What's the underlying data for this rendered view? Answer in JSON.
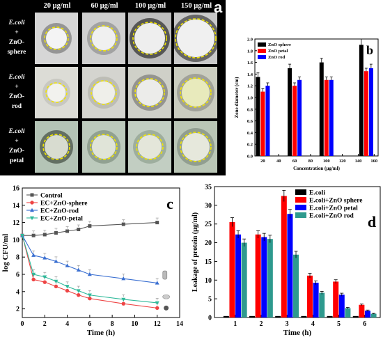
{
  "panel_a": {
    "letter": "a",
    "columns": [
      "20 µg/ml",
      "60 µg/ml",
      "100 µg/ml",
      "150 µg/ml"
    ],
    "rows": [
      {
        "l1": "E.coli",
        "l2": "+",
        "l3": "ZnO-",
        "l4": "sphere"
      },
      {
        "l1": "E.coli",
        "l2": "+",
        "l3": "ZnO-",
        "l4": "rod"
      },
      {
        "l1": "E.coli",
        "l2": "+",
        "l3": "ZnO-",
        "l4": "petal"
      }
    ],
    "ring_color": "#f2e600"
  },
  "chart_data": [
    {
      "panel": "b",
      "type": "bar",
      "title": "",
      "xlabel": "Concentration (µg/ml)",
      "ylabel": "Zone diameter (cm)",
      "x": [
        20,
        60,
        100,
        150
      ],
      "xlim": [
        10,
        165
      ],
      "xticks": [
        20,
        40,
        60,
        80,
        100,
        120,
        140,
        160
      ],
      "ylim": [
        0,
        2.0
      ],
      "yticks": [
        "0.0",
        "0.2",
        "0.4",
        "0.6",
        "0.8",
        "1.0",
        "1.2",
        "1.4",
        "1.6",
        "1.8",
        "2.0"
      ],
      "legend_position": "top-left",
      "series": [
        {
          "name": "ZnO sphere",
          "color": "#000000",
          "values": [
            1.35,
            1.5,
            1.6,
            1.9
          ],
          "errors": [
            0.07,
            0.07,
            0.07,
            0.1
          ]
        },
        {
          "name": "ZnO petal",
          "color": "#ff0000",
          "values": [
            1.1,
            1.2,
            1.3,
            1.45
          ],
          "errors": [
            0.05,
            0.05,
            0.05,
            0.05
          ]
        },
        {
          "name": "ZnO rod",
          "color": "#0000ff",
          "values": [
            1.2,
            1.3,
            1.3,
            1.5
          ],
          "errors": [
            0.05,
            0.05,
            0.05,
            0.07
          ]
        }
      ]
    },
    {
      "panel": "c",
      "type": "line",
      "title": "",
      "xlabel": "Time (h)",
      "ylabel": "log CFU/ml",
      "xlim": [
        0,
        14
      ],
      "xticks": [
        "0",
        "2",
        "4",
        "6",
        "8",
        "10",
        "12",
        "14"
      ],
      "ylim": [
        1,
        16
      ],
      "yticks": [
        "2",
        "4",
        "6",
        "8",
        "10",
        "12",
        "14",
        "16"
      ],
      "legend_position": "top-left",
      "series": [
        {
          "name": "Control",
          "color": "#555555",
          "marker": "square",
          "x": [
            0,
            1,
            2,
            3,
            4,
            5,
            6,
            9,
            12
          ],
          "y": [
            10.5,
            10.5,
            10.6,
            10.8,
            11.0,
            11.2,
            11.6,
            11.8,
            12.0
          ]
        },
        {
          "name": "EC+ZnO-sphere",
          "color": "#ee4444",
          "marker": "circle",
          "x": [
            0,
            1,
            2,
            3,
            4,
            5,
            6,
            9,
            12
          ],
          "y": [
            10.5,
            5.4,
            5.1,
            4.6,
            4.1,
            3.6,
            3.2,
            2.6,
            2.1
          ]
        },
        {
          "name": "EC+ZnO-rod",
          "color": "#3a6fd1",
          "marker": "triangle-up",
          "x": [
            0,
            1,
            2,
            3,
            4,
            5,
            6,
            9,
            12
          ],
          "y": [
            10.5,
            8.2,
            7.9,
            7.5,
            7.0,
            6.5,
            6.0,
            5.5,
            5.0
          ]
        },
        {
          "name": "EC+ZnO-petal",
          "color": "#2fb99a",
          "marker": "triangle-down",
          "x": [
            0,
            1,
            2,
            3,
            4,
            5,
            6,
            9,
            12
          ],
          "y": [
            10.5,
            6.0,
            5.7,
            5.2,
            4.6,
            4.1,
            3.6,
            3.1,
            2.7
          ]
        }
      ]
    },
    {
      "panel": "d",
      "type": "bar",
      "title": "",
      "xlabel": "Time (h)",
      "ylabel": "Leakage of protein (µg/ml)",
      "categories": [
        "1",
        "2",
        "3",
        "4",
        "5",
        "6"
      ],
      "ylim": [
        0,
        35
      ],
      "yticks": [
        "0",
        "5",
        "10",
        "15",
        "20",
        "25",
        "30",
        "35"
      ],
      "legend_position": "top-right",
      "series": [
        {
          "name": "E.coli",
          "color": "#000000",
          "values": [
            0.4,
            0.4,
            0.4,
            0.4,
            0.4,
            0.4
          ],
          "errors": [
            0,
            0,
            0,
            0,
            0,
            0
          ]
        },
        {
          "name": "E.coli+ZnO sphere",
          "color": "#ff0000",
          "values": [
            25.5,
            22.2,
            32.5,
            11.2,
            9.6,
            3.4
          ],
          "errors": [
            1.2,
            1.0,
            1.5,
            0.6,
            0.5,
            0.2
          ]
        },
        {
          "name": "E.coli+ZnO petal",
          "color": "#0000ff",
          "values": [
            22.2,
            21.5,
            27.7,
            9.3,
            6.1,
            1.8
          ],
          "errors": [
            1.0,
            1.0,
            1.2,
            0.5,
            0.4,
            0.2
          ]
        },
        {
          "name": "E.coli+ZnO rod",
          "color": "#2e9a8e",
          "values": [
            20.0,
            21.0,
            16.8,
            6.6,
            2.5,
            1.0
          ],
          "errors": [
            1.0,
            1.0,
            0.9,
            0.4,
            0.2,
            0.1
          ]
        }
      ]
    }
  ],
  "letters": {
    "b": "b",
    "c": "c",
    "d": "d"
  }
}
